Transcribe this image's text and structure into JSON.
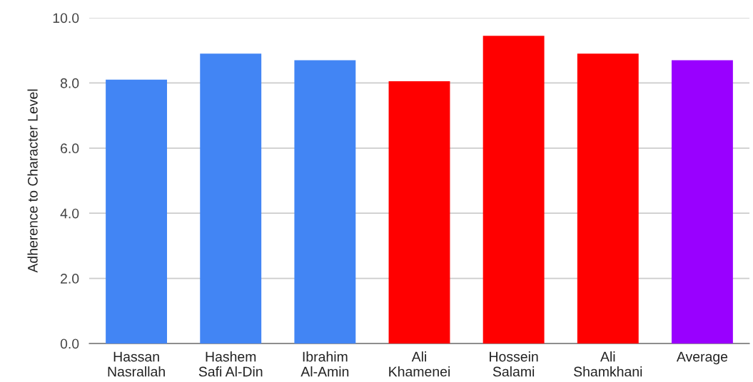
{
  "chart_data": {
    "type": "bar",
    "ylabel": "Adherence to Character Level",
    "categories": [
      "Hassan\nNasrallah",
      "Hashem\nSafi Al-Din",
      "Ibrahim\nAl-Amin",
      "Ali\nKhamenei",
      "Hossein\nSalami",
      "Ali\nShamkhani",
      "Average"
    ],
    "values": [
      8.1,
      8.9,
      8.7,
      8.05,
      9.45,
      8.9,
      8.7
    ],
    "colors": [
      "#4285f4",
      "#4285f4",
      "#4285f4",
      "#ff0000",
      "#ff0000",
      "#ff0000",
      "#9900ff"
    ],
    "ylim": [
      0,
      10
    ],
    "yticks": [
      {
        "value": 0,
        "label": "0.0"
      },
      {
        "value": 2,
        "label": "2.0"
      },
      {
        "value": 4,
        "label": "4.0"
      },
      {
        "value": 6,
        "label": "6.0"
      },
      {
        "value": 8,
        "label": "8.0"
      },
      {
        "value": 10,
        "label": "10.0"
      }
    ],
    "grid": "y",
    "legend": false
  }
}
